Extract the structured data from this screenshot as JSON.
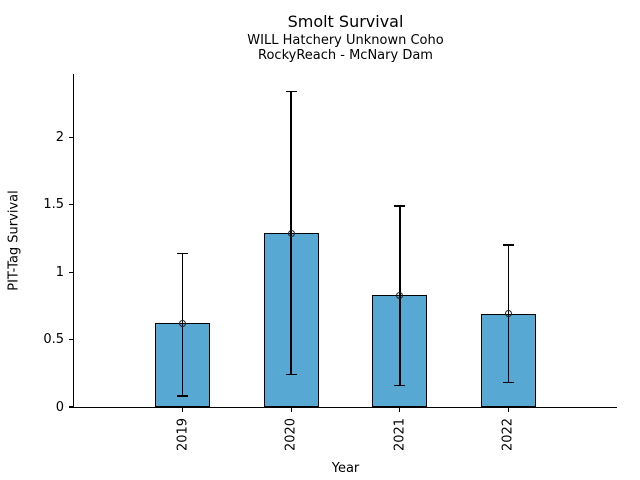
{
  "chart_data": {
    "type": "bar",
    "title": "Smolt Survival",
    "subtitle1": "WILL Hatchery Unknown Coho",
    "subtitle2": "RockyReach - McNary Dam",
    "xlabel": "Year",
    "ylabel": "PIT-Tag Survival",
    "categories": [
      "2019",
      "2020",
      "2021",
      "2022"
    ],
    "values": [
      0.62,
      1.29,
      0.83,
      0.69
    ],
    "error_low": [
      0.08,
      0.24,
      0.16,
      0.18
    ],
    "error_high": [
      1.14,
      2.34,
      1.49,
      1.2
    ],
    "ytick_labels": [
      "0",
      "0.5",
      "1",
      "1.5",
      "2"
    ],
    "yticks": [
      0,
      0.5,
      1,
      1.5,
      2
    ],
    "ylim": [
      0,
      2.47
    ],
    "grid": false,
    "legend_position": "none",
    "marker": "open-circle-marker",
    "bar_color": "#57A9D4",
    "edge_color": "#000000",
    "errorbar_color": "#000000",
    "text_color": "#000000"
  }
}
